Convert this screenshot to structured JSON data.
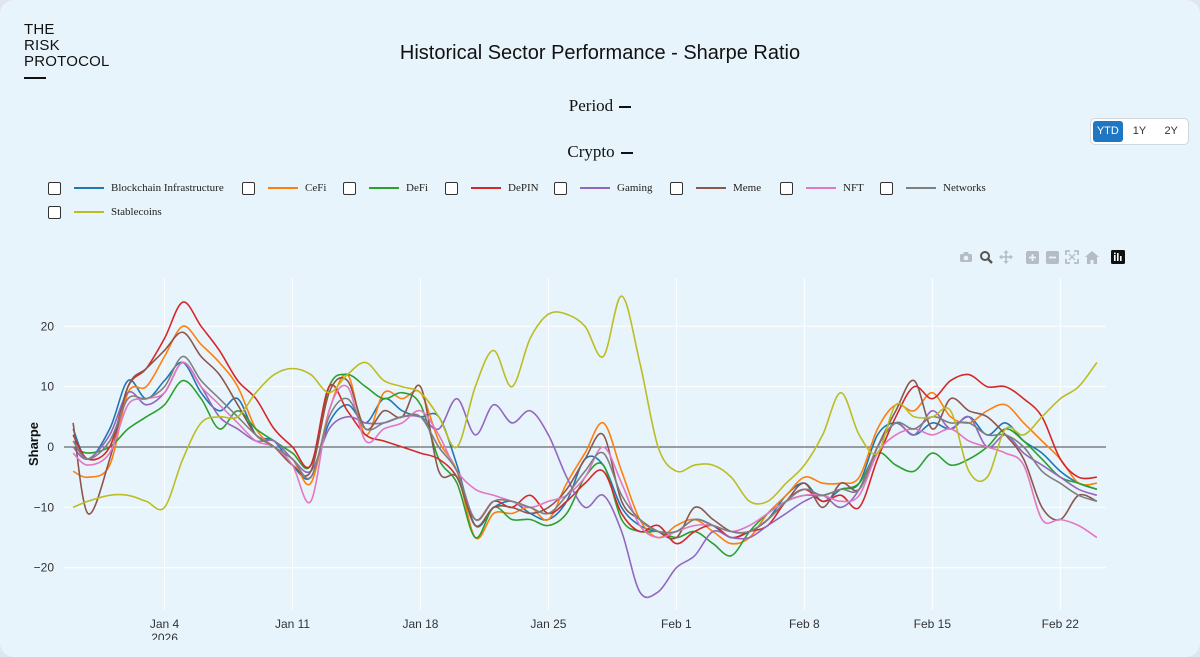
{
  "logo": {
    "lines": [
      "THE",
      "RISK",
      "PROTOCOL"
    ]
  },
  "title": "Historical Sector Performance - Sharpe Ratio",
  "selectors": {
    "period_label": "Period",
    "crypto_label": "Crypto"
  },
  "range_buttons": [
    "YTD",
    "1Y",
    "2Y"
  ],
  "range_selected": "YTD",
  "modebar_icons": [
    "camera-icon",
    "zoom-icon",
    "pan-icon",
    "zoom-in-icon",
    "zoom-out-icon",
    "autoscale-icon",
    "home-icon",
    "plotly-logo-icon"
  ],
  "chart_data": {
    "type": "line",
    "title": "Historical Sector Performance - Sharpe Ratio",
    "xlabel": "",
    "ylabel": "Sharpe",
    "xlim_days": [
      -2.5,
      54.5
    ],
    "ylim": [
      -27,
      28
    ],
    "x_ticks": [
      {
        "day": 3,
        "label": "Jan 4",
        "sub": "2026"
      },
      {
        "day": 10,
        "label": "Jan 11",
        "sub": ""
      },
      {
        "day": 17,
        "label": "Jan 18",
        "sub": ""
      },
      {
        "day": 24,
        "label": "Jan 25",
        "sub": ""
      },
      {
        "day": 31,
        "label": "Feb 1",
        "sub": ""
      },
      {
        "day": 38,
        "label": "Feb 8",
        "sub": ""
      },
      {
        "day": 45,
        "label": "Feb 15",
        "sub": ""
      },
      {
        "day": 52,
        "label": "Feb 22",
        "sub": ""
      }
    ],
    "y_ticks": [
      {
        "value": 20,
        "label": "20"
      },
      {
        "value": 10,
        "label": "10"
      },
      {
        "value": 0,
        "label": "0"
      },
      {
        "value": -10,
        "label": "−10"
      },
      {
        "value": -20,
        "label": "−20"
      }
    ],
    "series": [
      {
        "name": "Blockchain Infrastructure",
        "color": "#1f77b4",
        "x": [
          -2,
          -1.2,
          0,
          1,
          2,
          3,
          4,
          5,
          6,
          7,
          8,
          9,
          10,
          11,
          12,
          13,
          14,
          15,
          16,
          17,
          18,
          19,
          20,
          21,
          22,
          23,
          24,
          25,
          26,
          27,
          28,
          29,
          30,
          31,
          32,
          33,
          34,
          35,
          36,
          37,
          38,
          39,
          40,
          41,
          42,
          43,
          44,
          45,
          46,
          47,
          48,
          49,
          50,
          51,
          52,
          53,
          54
        ],
        "values": [
          3,
          -2,
          3,
          11,
          8,
          11,
          14,
          9,
          6,
          8,
          2,
          1,
          -3,
          -5,
          4,
          7,
          4,
          8,
          6,
          5,
          5,
          -3,
          -13,
          -10,
          -9,
          -11,
          -12,
          -9,
          -2,
          -3,
          -10,
          -13,
          -14,
          -14,
          -12,
          -13,
          -15,
          -14,
          -12,
          -8,
          -6,
          -9,
          -7,
          -6,
          2,
          4,
          2,
          4,
          3,
          5,
          2,
          4,
          1,
          -1,
          -4,
          -6,
          -7
        ]
      },
      {
        "name": "CeFi",
        "color": "#ff7f0e",
        "x": [
          -2,
          -1.2,
          0,
          1,
          2,
          3,
          4,
          5,
          6,
          7,
          8,
          9,
          10,
          11,
          12,
          13,
          14,
          15,
          16,
          17,
          18,
          19,
          20,
          21,
          22,
          23,
          24,
          25,
          26,
          27,
          28,
          29,
          30,
          31,
          32,
          33,
          34,
          35,
          36,
          37,
          38,
          39,
          40,
          41,
          42,
          43,
          44,
          45,
          46,
          47,
          48,
          49,
          50,
          51,
          52,
          53,
          54
        ],
        "values": [
          -4,
          -5,
          -3,
          9,
          10,
          15,
          20,
          17,
          14,
          10,
          3,
          0,
          -2,
          -6,
          6,
          12,
          2,
          9,
          8,
          9,
          1,
          -4,
          -15,
          -11,
          -11,
          -10,
          -12,
          -6,
          -1,
          4,
          -4,
          -12,
          -15,
          -13,
          -12,
          -14,
          -16,
          -15,
          -11,
          -8,
          -5,
          -6,
          -6,
          -5,
          3,
          7,
          6,
          9,
          5,
          4,
          6,
          7,
          4,
          1,
          -2,
          -6,
          -6
        ]
      },
      {
        "name": "DeFi",
        "color": "#2ca02c",
        "x": [
          -2,
          -1.2,
          0,
          1,
          2,
          3,
          4,
          5,
          6,
          7,
          8,
          9,
          10,
          11,
          12,
          13,
          14,
          15,
          16,
          17,
          18,
          19,
          20,
          21,
          22,
          23,
          24,
          25,
          26,
          27,
          28,
          29,
          30,
          31,
          32,
          33,
          34,
          35,
          36,
          37,
          38,
          39,
          40,
          41,
          42,
          43,
          44,
          45,
          46,
          47,
          48,
          49,
          50,
          51,
          52,
          53,
          54
        ],
        "values": [
          0,
          -1,
          0,
          3,
          5,
          7,
          11,
          8,
          3,
          6,
          3,
          1,
          -1,
          -3,
          10,
          12,
          10,
          8,
          9,
          7,
          -2,
          -6,
          -15,
          -10,
          -12,
          -12,
          -13,
          -11,
          -5,
          -3,
          -12,
          -14,
          -14,
          -15,
          -14,
          -16,
          -18,
          -14,
          -11,
          -9,
          -8,
          -8,
          -7,
          -6,
          -1,
          -3,
          -4,
          -1,
          -3,
          -2,
          0,
          3,
          1,
          -2,
          -5,
          -6,
          -7
        ]
      },
      {
        "name": "DePIN",
        "color": "#d62728",
        "x": [
          -2,
          -1.2,
          0,
          1,
          2,
          3,
          4,
          5,
          6,
          7,
          8,
          9,
          10,
          11,
          12,
          13,
          14,
          15,
          16,
          17,
          18,
          19,
          20,
          21,
          22,
          23,
          24,
          25,
          26,
          27,
          28,
          29,
          30,
          31,
          32,
          33,
          34,
          35,
          36,
          37,
          38,
          39,
          40,
          41,
          42,
          43,
          44,
          45,
          46,
          47,
          48,
          49,
          50,
          51,
          52,
          53,
          54
        ],
        "values": [
          2,
          -2,
          0,
          10,
          13,
          18,
          24,
          20,
          16,
          11,
          8,
          3,
          0,
          -3,
          10,
          6,
          2,
          1,
          0,
          -1,
          -2,
          -5,
          -12,
          -9,
          -10,
          -8,
          -11,
          -9,
          -6,
          -4,
          -11,
          -14,
          -13,
          -16,
          -14,
          -13,
          -15,
          -14,
          -13,
          -9,
          -7,
          -9,
          -8,
          -10,
          -2,
          5,
          10,
          8,
          11,
          12,
          10,
          10,
          8,
          5,
          -2,
          -5,
          -5
        ]
      },
      {
        "name": "Gaming",
        "color": "#9467bd",
        "x": [
          -2,
          -1.2,
          0,
          1,
          2,
          3,
          4,
          5,
          6,
          7,
          8,
          9,
          10,
          11,
          12,
          13,
          14,
          15,
          16,
          17,
          18,
          19,
          20,
          21,
          22,
          23,
          24,
          25,
          26,
          27,
          28,
          29,
          30,
          31,
          32,
          33,
          34,
          35,
          36,
          37,
          38,
          39,
          40,
          41,
          42,
          43,
          44,
          45,
          46,
          47,
          48,
          49,
          50,
          51,
          52,
          53,
          54
        ],
        "values": [
          0,
          -2,
          2,
          9,
          7,
          9,
          14,
          10,
          5,
          3,
          1,
          1,
          -2,
          -4,
          3,
          5,
          4,
          4,
          5,
          5,
          3,
          8,
          2,
          7,
          4,
          6,
          2,
          -5,
          -10,
          -8,
          -14,
          -24,
          -24,
          -20,
          -18,
          -14,
          -15,
          -15,
          -13,
          -11,
          -9,
          -8,
          -10,
          -7,
          0,
          4,
          2,
          6,
          3,
          5,
          0,
          2,
          -1,
          -3,
          -5,
          -7,
          -8
        ]
      },
      {
        "name": "Meme",
        "color": "#8c564b",
        "x": [
          -2,
          -1.2,
          0,
          1,
          2,
          3,
          4,
          5,
          6,
          7,
          8,
          9,
          10,
          11,
          12,
          13,
          14,
          15,
          16,
          17,
          18,
          19,
          20,
          21,
          22,
          23,
          24,
          25,
          26,
          27,
          28,
          29,
          30,
          31,
          32,
          33,
          34,
          35,
          36,
          37,
          38,
          39,
          40,
          41,
          42,
          43,
          44,
          45,
          46,
          47,
          48,
          49,
          50,
          51,
          52,
          53,
          54
        ],
        "values": [
          4,
          -11,
          -2,
          10,
          13,
          16,
          19,
          15,
          12,
          7,
          2,
          0,
          -3,
          -4,
          9,
          11,
          3,
          6,
          5,
          10,
          -4,
          -5,
          -13,
          -10,
          -10,
          -11,
          -10,
          -7,
          -2,
          2,
          -9,
          -12,
          -14,
          -15,
          -10,
          -12,
          -14,
          -14,
          -12,
          -9,
          -6,
          -10,
          -6,
          -7,
          0,
          6,
          11,
          3,
          8,
          6,
          5,
          2,
          -2,
          -10,
          -12,
          -8,
          -9
        ]
      },
      {
        "name": "NFT",
        "color": "#e377c2",
        "x": [
          -2,
          -1.2,
          0,
          1,
          2,
          3,
          4,
          5,
          6,
          7,
          8,
          9,
          10,
          11,
          12,
          13,
          14,
          15,
          16,
          17,
          18,
          19,
          20,
          21,
          22,
          23,
          24,
          25,
          26,
          27,
          28,
          29,
          30,
          31,
          32,
          33,
          34,
          35,
          36,
          37,
          38,
          39,
          40,
          41,
          42,
          43,
          44,
          45,
          46,
          47,
          48,
          49,
          50,
          51,
          52,
          53,
          54
        ],
        "values": [
          -1,
          -3,
          -1,
          7,
          8,
          9,
          14,
          10,
          7,
          4,
          1,
          0,
          -3,
          -9,
          6,
          10,
          1,
          3,
          4,
          6,
          2,
          -4,
          -7,
          -8,
          -9,
          -10,
          -9,
          -8,
          -5,
          0,
          -6,
          -13,
          -15,
          -14,
          -13,
          -13,
          -14,
          -13,
          -11,
          -9,
          -8,
          -8,
          -9,
          -8,
          -1,
          2,
          3,
          2,
          3,
          1,
          0,
          -1,
          -3,
          -12,
          -12,
          -13,
          -15
        ]
      },
      {
        "name": "Networks",
        "color": "#7f7f7f",
        "x": [
          -2,
          -1.2,
          0,
          1,
          2,
          3,
          4,
          5,
          6,
          7,
          8,
          9,
          10,
          11,
          12,
          13,
          14,
          15,
          16,
          17,
          18,
          19,
          20,
          21,
          22,
          23,
          24,
          25,
          26,
          27,
          28,
          29,
          30,
          31,
          32,
          33,
          34,
          35,
          36,
          37,
          38,
          39,
          40,
          41,
          42,
          43,
          44,
          45,
          46,
          47,
          48,
          49,
          50,
          51,
          52,
          53,
          54
        ],
        "values": [
          1,
          -2,
          1,
          8,
          8,
          10,
          15,
          11,
          8,
          5,
          2,
          0,
          -2,
          -5,
          5,
          8,
          3,
          4,
          5,
          5,
          0,
          -4,
          -12,
          -9,
          -9,
          -10,
          -11,
          -8,
          -4,
          -1,
          -8,
          -12,
          -14,
          -14,
          -12,
          -13,
          -14,
          -14,
          -12,
          -9,
          -7,
          -8,
          -7,
          -7,
          0,
          4,
          3,
          5,
          4,
          4,
          2,
          2,
          0,
          -4,
          -6,
          -8,
          -9
        ]
      },
      {
        "name": "Stablecoins",
        "color": "#bcbd22",
        "x": [
          -2,
          -1.2,
          0,
          1,
          2,
          3,
          4,
          5,
          6,
          7,
          8,
          9,
          10,
          11,
          12,
          13,
          14,
          15,
          16,
          17,
          18,
          19,
          20,
          21,
          22,
          23,
          24,
          25,
          26,
          27,
          28,
          29,
          30,
          31,
          32,
          33,
          34,
          35,
          36,
          37,
          38,
          39,
          40,
          41,
          42,
          43,
          44,
          45,
          46,
          47,
          48,
          49,
          50,
          51,
          52,
          53,
          54
        ],
        "values": [
          -10,
          -9,
          -8,
          -8,
          -9,
          -10,
          -2,
          4,
          5,
          5,
          9,
          12,
          13,
          12,
          9,
          12,
          14,
          11,
          10,
          9,
          5,
          0,
          10,
          16,
          10,
          18,
          22,
          22,
          20,
          15,
          25,
          14,
          0,
          -4,
          -3,
          -3,
          -5,
          -9,
          -9,
          -6,
          -3,
          2,
          9,
          2,
          -1,
          7,
          5,
          5,
          6,
          -4,
          -5,
          3,
          2,
          5,
          8,
          10,
          14
        ]
      }
    ]
  }
}
